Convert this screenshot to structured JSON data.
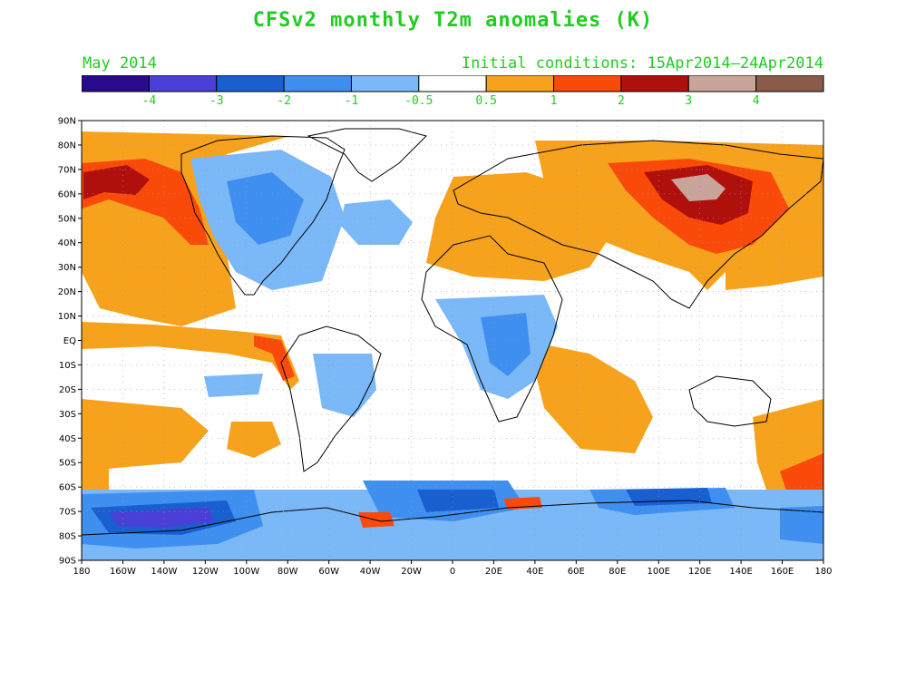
{
  "title": "CFSv2 monthly T2m anomalies (K)",
  "valid_month": "May 2014",
  "initial_conditions": "Initial conditions: 15Apr2014–24Apr2014",
  "colorbar": {
    "colors": [
      "#2a0a8c",
      "#4a3fd6",
      "#1a5fd0",
      "#3f8ff0",
      "#7ab8f8",
      "#ffffff",
      "#f7a21c",
      "#fa4a0a",
      "#b0100c",
      "#c8a49a",
      "#8a5a4a"
    ],
    "tick_labels": [
      "-4",
      "-3",
      "-2",
      "-1",
      "-0.5",
      "0.5",
      "1",
      "2",
      "3",
      "4"
    ]
  },
  "axes": {
    "lat_labels": [
      "90N",
      "80N",
      "70N",
      "60N",
      "50N",
      "40N",
      "30N",
      "20N",
      "10N",
      "EQ",
      "10S",
      "20S",
      "30S",
      "40S",
      "50S",
      "60S",
      "70S",
      "80S",
      "90S"
    ],
    "lon_labels": [
      "180",
      "160W",
      "140W",
      "120W",
      "100W",
      "80W",
      "60W",
      "40W",
      "20W",
      "0",
      "20E",
      "40E",
      "60E",
      "80E",
      "100E",
      "120E",
      "140E",
      "160E",
      "180"
    ]
  }
}
